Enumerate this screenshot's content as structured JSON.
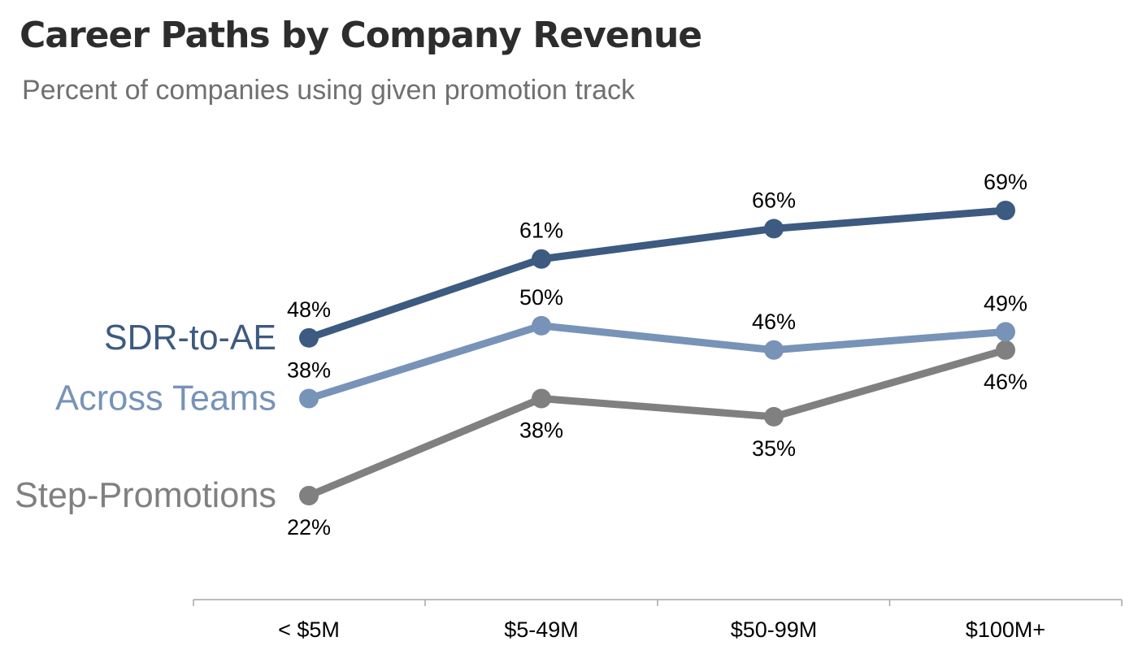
{
  "title": "Career Paths by Company Revenue",
  "subtitle": "Percent of companies using given promotion track",
  "chart_data": {
    "type": "line",
    "title": "Career Paths by Company Revenue",
    "subtitle": "Percent of companies using given promotion track",
    "xlabel": "",
    "ylabel": "",
    "categories": [
      "< $5M",
      "$5-49M",
      "$50-99M",
      "$100M+"
    ],
    "ylim": [
      0,
      100
    ],
    "grid": false,
    "legend": "inline-left",
    "series": [
      {
        "name": "SDR-to-AE",
        "values": [
          48,
          61,
          66,
          69
        ],
        "labels": [
          "48%",
          "61%",
          "66%",
          "69%"
        ],
        "color": "#3d5a80",
        "label_positions": [
          "above",
          "above",
          "above",
          "above"
        ]
      },
      {
        "name": "Across Teams",
        "values": [
          38,
          50,
          46,
          49
        ],
        "labels": [
          "38%",
          "50%",
          "46%",
          "49%"
        ],
        "color": "#7893b8",
        "label_positions": [
          "above",
          "above",
          "above",
          "above"
        ]
      },
      {
        "name": "Step-Promotions",
        "values": [
          22,
          38,
          35,
          46
        ],
        "labels": [
          "22%",
          "38%",
          "35%",
          "46%"
        ],
        "color": "#808080",
        "label_positions": [
          "below",
          "below",
          "below",
          "below"
        ]
      }
    ]
  },
  "colors": {
    "axis": "#a6a6a6",
    "data_label": "#000000",
    "title": "#2d2d2d",
    "subtitle": "#707070"
  }
}
